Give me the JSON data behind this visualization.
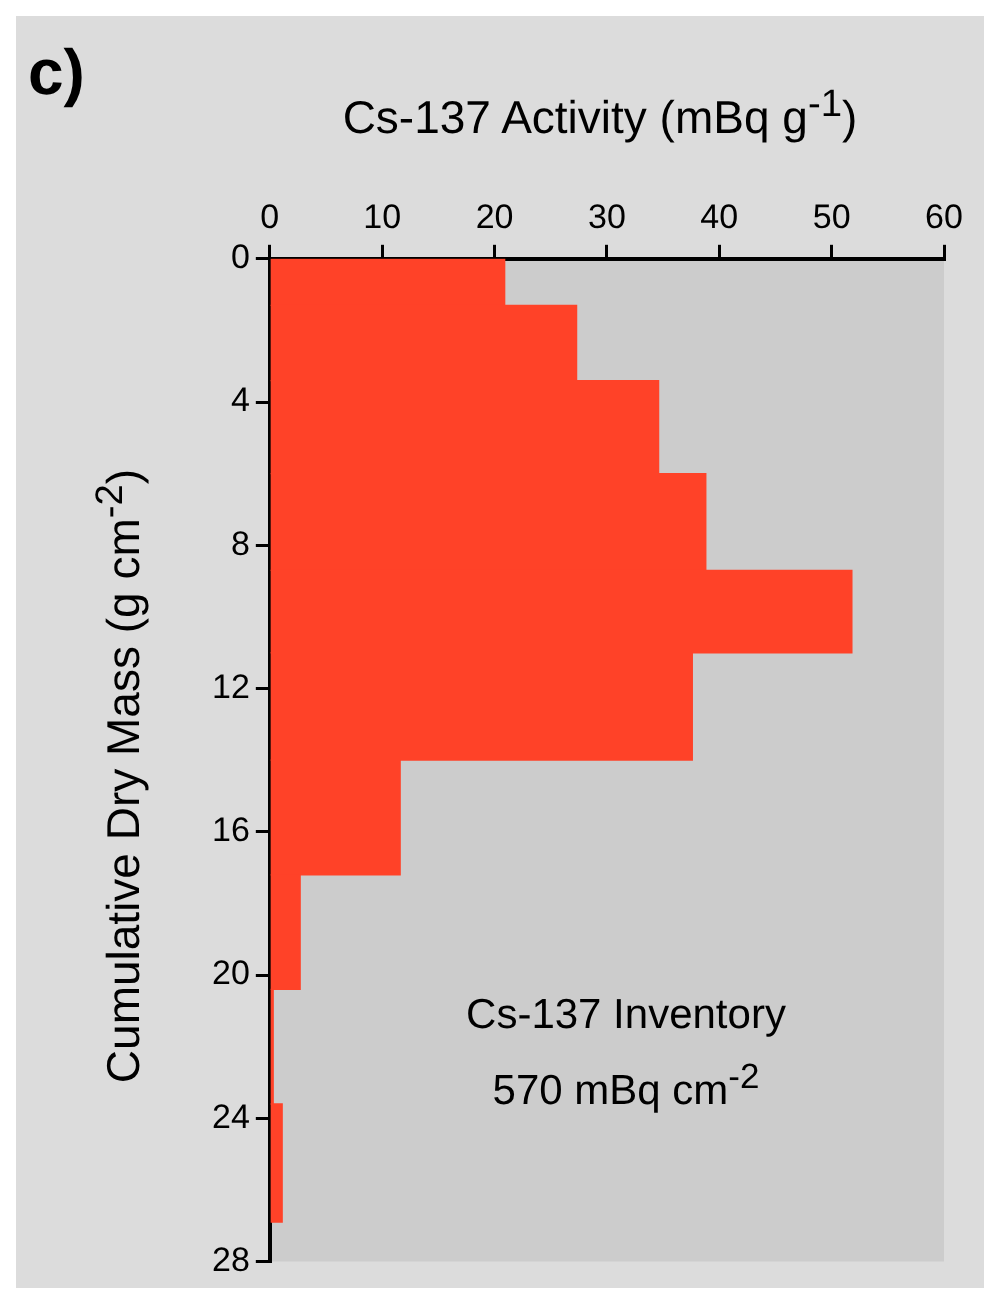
{
  "chart_data": {
    "type": "histogram",
    "orientation": "horizontal",
    "xlabel": "Cs-137 Activity (mBq g$^{-1}$)",
    "ylabel": "Cumulative Dry Mass (g cm$^{-2}$)",
    "bins": [
      0,
      1.3,
      3.4,
      6,
      8.7,
      11,
      14,
      17.2,
      20.4,
      23.6,
      26.9
    ],
    "values": [
      20.9,
      27.3,
      34.6,
      38.8,
      51.8,
      37.6,
      11.6,
      2.7,
      0.3,
      1.1
    ],
    "color": "#ff4228",
    "xlim": [
      0,
      60
    ],
    "xticks": [
      0,
      10,
      20,
      30,
      40,
      50,
      60
    ],
    "ylim": [
      28,
      0
    ],
    "yticks": [
      0,
      4,
      8,
      12,
      16,
      20,
      24,
      28
    ],
    "annotations": [
      "c)",
      "Cs-137 Inventory\n570 mBq cm$^{-2}$"
    ]
  }
}
